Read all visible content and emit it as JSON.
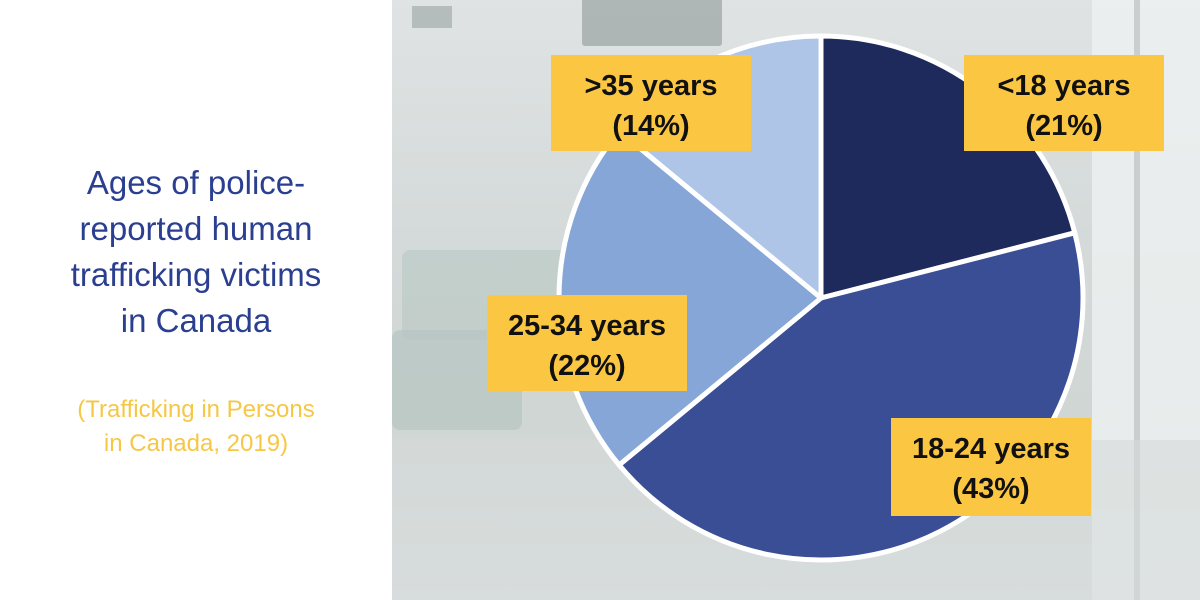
{
  "title": "Ages of police-reported human trafficking victims in Canada",
  "title_lines": [
    "Ages of police-",
    "reported human",
    "trafficking victims",
    "in Canada"
  ],
  "source_lines": [
    "(Trafficking in Persons",
    "in Canada, 2019)"
  ],
  "colors": {
    "title": "#2b3f91",
    "source": "#f6c745",
    "label_box": "#fbc743",
    "label_text": "#111111"
  },
  "chart_data": {
    "type": "pie",
    "title": "Ages of police-reported human trafficking victims in Canada",
    "slices": [
      {
        "label": "<18 years",
        "value": 21,
        "pct_text": "(21%)",
        "color": "#1f2a5c"
      },
      {
        "label": "18-24 years",
        "value": 43,
        "pct_text": "(43%)",
        "color": "#3a4e96"
      },
      {
        "label": "25-34 years",
        "value": 22,
        "pct_text": "(22%)",
        "color": "#85a6d6"
      },
      {
        "label": ">35 years",
        "value": 14,
        "pct_text": "(14%)",
        "color": "#aec5e8"
      }
    ]
  }
}
